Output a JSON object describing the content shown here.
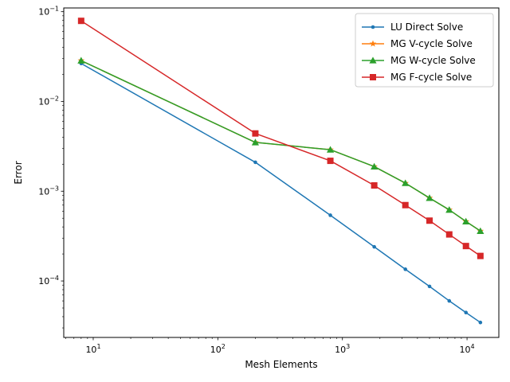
{
  "chart_data": {
    "type": "line",
    "title": "",
    "xlabel": "Mesh Elements",
    "ylabel": "Error",
    "xscale": "log",
    "yscale": "log",
    "xlim": [
      5.8,
      18000
    ],
    "ylim": [
      2.35e-05,
      0.11
    ],
    "x_ticks": [
      {
        "value": 10,
        "base": "10",
        "exp": "1"
      },
      {
        "value": 100,
        "base": "10",
        "exp": "2"
      },
      {
        "value": 1000,
        "base": "10",
        "exp": "3"
      },
      {
        "value": 10000,
        "base": "10",
        "exp": "4"
      }
    ],
    "y_ticks": [
      {
        "value": 0.0001,
        "base": "10",
        "exp": "−4"
      },
      {
        "value": 0.001,
        "base": "10",
        "exp": "−3"
      },
      {
        "value": 0.01,
        "base": "10",
        "exp": "−2"
      },
      {
        "value": 0.1,
        "base": "10",
        "exp": "−1"
      }
    ],
    "grid": false,
    "legend_position": "top-right",
    "series": [
      {
        "name": "LU Direct Solve",
        "color": "#1f77b4",
        "marker": "point",
        "x": [
          8,
          200,
          800,
          1800,
          3200,
          5000,
          7200,
          9800,
          12800
        ],
        "y": [
          0.0265,
          0.0021,
          0.00054,
          0.00024,
          0.000135,
          8.7e-05,
          6e-05,
          4.45e-05,
          3.45e-05
        ]
      },
      {
        "name": "MG V-cycle Solve",
        "color": "#ff7f0e",
        "marker": "star",
        "x": [
          8,
          200,
          800,
          1800,
          3200,
          5000,
          7200,
          9800,
          12800
        ],
        "y": [
          0.0285,
          0.0035,
          0.0029,
          0.00188,
          0.00123,
          0.00084,
          0.00062,
          0.00046,
          0.00036
        ]
      },
      {
        "name": "MG W-cycle Solve",
        "color": "#2ca02c",
        "marker": "triangle",
        "x": [
          8,
          200,
          800,
          1800,
          3200,
          5000,
          7200,
          9800,
          12800
        ],
        "y": [
          0.0285,
          0.0035,
          0.0029,
          0.00188,
          0.00123,
          0.00084,
          0.00062,
          0.00046,
          0.00036
        ]
      },
      {
        "name": "MG F-cycle Solve",
        "color": "#d62728",
        "marker": "square",
        "x": [
          8,
          200,
          800,
          1800,
          3200,
          5000,
          7200,
          9800,
          12800
        ],
        "y": [
          0.079,
          0.0044,
          0.00218,
          0.00116,
          0.0007,
          0.00047,
          0.00033,
          0.000245,
          0.00019
        ]
      }
    ]
  }
}
